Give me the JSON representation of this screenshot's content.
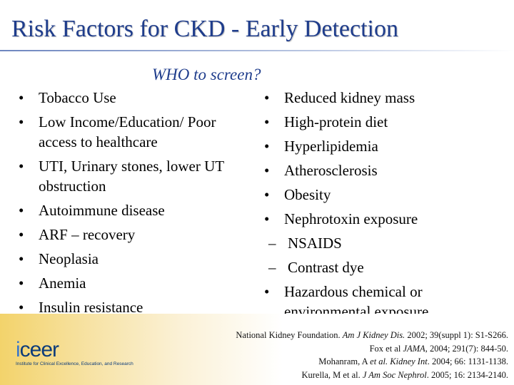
{
  "slide": {
    "title": "Risk Factors for CKD - Early Detection",
    "subtitle": "WHO to screen?"
  },
  "left_items": [
    {
      "level": 1,
      "text": "Tobacco Use"
    },
    {
      "level": 1,
      "text": "Low Income/Education/ Poor access to healthcare"
    },
    {
      "level": 1,
      "text": "UTI, Urinary stones, lower UT obstruction"
    },
    {
      "level": 1,
      "text": "Autoimmune disease"
    },
    {
      "level": 1,
      "text": "ARF – recovery"
    },
    {
      "level": 1,
      "text": "Neoplasia"
    },
    {
      "level": 1,
      "text": "Anemia"
    },
    {
      "level": 1,
      "text": "Insulin resistance"
    }
  ],
  "right_items": [
    {
      "level": 1,
      "text": "Reduced kidney mass"
    },
    {
      "level": 1,
      "text": "High-protein diet"
    },
    {
      "level": 1,
      "text": "Hyperlipidemia"
    },
    {
      "level": 1,
      "text": "Atherosclerosis"
    },
    {
      "level": 1,
      "text": "Obesity"
    },
    {
      "level": 1,
      "text": "Nephrotoxin exposure"
    },
    {
      "level": 2,
      "text": "NSAIDS"
    },
    {
      "level": 2,
      "text": "Contrast dye"
    },
    {
      "level": 1,
      "text": "Hazardous chemical or environmental exposure"
    }
  ],
  "bullets": {
    "level1": "•",
    "level2": "–"
  },
  "logo": {
    "wordmark": "iceer",
    "tagline": "Institute for Clinical Excellence, Education, and Research"
  },
  "references": [
    [
      {
        "t": "National Kidney Foundation. "
      },
      {
        "t": "Am J Kidney Dis.",
        "i": true
      },
      {
        "t": " 2002; 39(suppl 1): S1-S266."
      }
    ],
    [
      {
        "t": "Fox et al "
      },
      {
        "t": "JAMA",
        "i": true
      },
      {
        "t": ", 2004; 291(7): 844-50."
      }
    ],
    [
      {
        "t": "Mohanram, A "
      },
      {
        "t": "et al. Kidney Int",
        "i": true
      },
      {
        "t": ". 2004; 66: 1131-1138."
      }
    ],
    [
      {
        "t": "Kurella, M et al. "
      },
      {
        "t": "J Am Soc Nephrol",
        "i": true
      },
      {
        "t": ". 2005; 16: 2134-2140."
      }
    ]
  ]
}
